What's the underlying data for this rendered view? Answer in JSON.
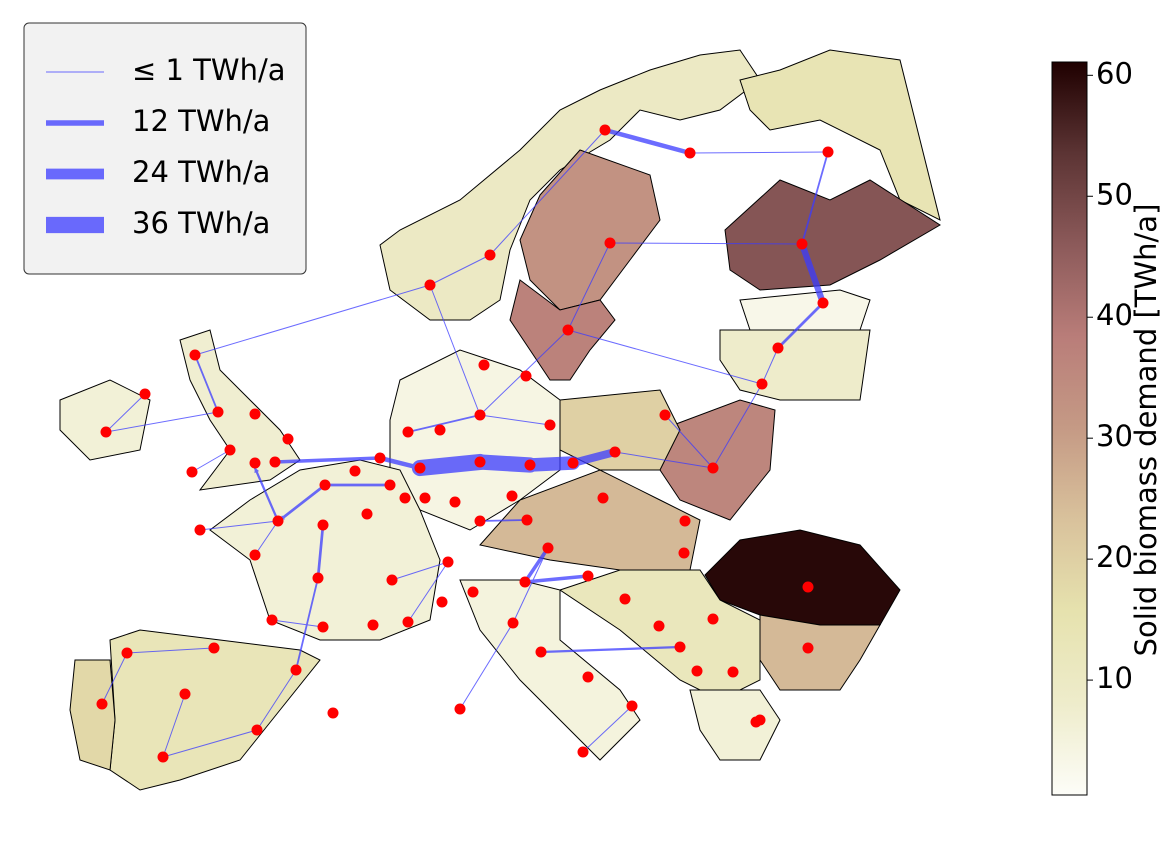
{
  "chart_data": {
    "type": "flow-map",
    "legend": [
      {
        "label": "≤ 1 TWh/a",
        "value": 1
      },
      {
        "label": "12 TWh/a",
        "value": 12
      },
      {
        "label": "24 TWh/a",
        "value": 24
      },
      {
        "label": "36 TWh/a",
        "value": 36
      }
    ],
    "flow_color": "#3b3bff",
    "node_color": "#ff0000",
    "region_values": [
      10,
      33,
      37,
      14,
      47,
      3,
      8,
      36,
      20,
      4,
      25,
      60,
      25,
      12,
      6,
      5,
      6,
      13,
      18,
      7,
      6
    ],
    "flow_values": [
      10,
      4,
      14,
      6,
      30,
      34,
      36,
      18,
      10,
      8,
      6,
      6,
      6,
      8,
      8,
      4,
      4,
      5,
      4,
      4,
      5,
      1,
      1,
      1,
      1,
      1,
      1,
      1,
      1,
      1,
      1,
      1,
      1,
      1,
      1,
      1,
      1,
      1,
      1,
      1,
      1,
      1,
      1,
      1,
      1,
      1,
      1,
      1,
      1,
      1,
      1
    ],
    "colorbar": {
      "label": "Solid biomass demand [TWh/a]",
      "ylim": [
        0.5,
        61.1
      ],
      "yticks": [
        10,
        20,
        30,
        40,
        50,
        60
      ],
      "colors": [
        "#fdfdf8",
        "#eeeccb",
        "#e6e2ae",
        "#d9c29c",
        "#c59a85",
        "#b97d79",
        "#8c5a5a",
        "#5c3434",
        "#1f0000"
      ]
    }
  }
}
